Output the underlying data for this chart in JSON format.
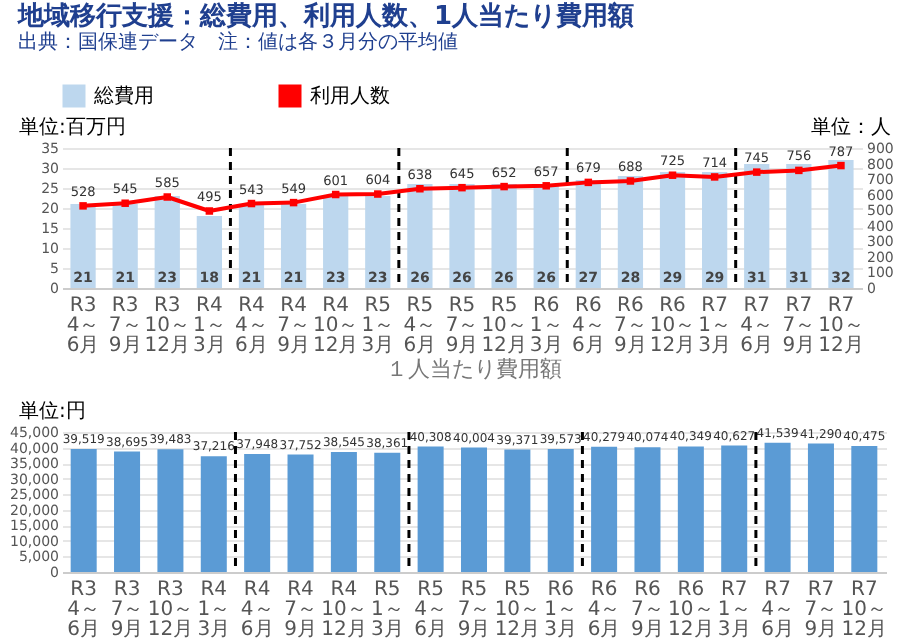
{
  "chart_data": [
    {
      "type": "bar",
      "title": "地域移行支援：総費用、利用人数、1人当たり費用額",
      "ylabel": "単位:百万円",
      "y2label": "単位：人",
      "annotations": [
        "出典：国保連データ",
        "注：値は各３月分の平均値"
      ],
      "categories": [
        "R3 4～6月",
        "R3 7～9月",
        "R3 10～12月",
        "R4 1～3月",
        "R4 4～6月",
        "R4 7～9月",
        "R4 10～12月",
        "R5 1～3月",
        "R5 4～6月",
        "R5 7～9月",
        "R5 10～12月",
        "R6 1～3月",
        "R6 4～6月",
        "R6 7～9月",
        "R6 10～12月",
        "R7 1～3月",
        "R7 4～6月",
        "R7 7～9月",
        "R7 10～12月"
      ],
      "series": [
        {
          "name": "総費用",
          "type": "bar",
          "color": "#bdd7ee",
          "values": [
            21,
            21,
            23,
            18,
            21,
            21,
            23,
            23,
            26,
            26,
            26,
            26,
            27,
            28,
            29,
            29,
            31,
            31,
            32
          ]
        },
        {
          "name": "利用人数",
          "type": "line",
          "axis": "y2",
          "color": "#ff0000",
          "values": [
            528,
            545,
            585,
            495,
            543,
            549,
            601,
            604,
            638,
            645,
            652,
            657,
            679,
            688,
            725,
            714,
            745,
            756,
            787
          ]
        }
      ],
      "data_labels": true,
      "marker": "square",
      "line_style": "solid",
      "ylim": [
        0,
        35
      ],
      "yticks": [
        0,
        5,
        10,
        15,
        20,
        25,
        30,
        35
      ],
      "y2lim": [
        0,
        900
      ],
      "y2ticks": [
        0,
        100,
        200,
        300,
        400,
        500,
        600,
        700,
        800,
        900
      ],
      "grid": "y",
      "legend": "top"
    },
    {
      "type": "bar",
      "title": "１人当たり費用額",
      "ylabel": "単位:円",
      "categories": [
        "R3 4～6月",
        "R3 7～9月",
        "R3 10～12月",
        "R4 1～3月",
        "R4 4～6月",
        "R4 7～9月",
        "R4 10～12月",
        "R5 1～3月",
        "R5 4～6月",
        "R5 7～9月",
        "R5 10～12月",
        "R6 1～3月",
        "R6 4～6月",
        "R6 7～9月",
        "R6 10～12月",
        "R7 1～3月",
        "R7 4～6月",
        "R7 7～9月",
        "R7 10～12月"
      ],
      "values": [
        39519,
        38695,
        39483,
        37216,
        37948,
        37752,
        38545,
        38361,
        40308,
        40004,
        39371,
        39573,
        40279,
        40074,
        40349,
        40627,
        41539,
        41290,
        40475
      ],
      "value_labels": [
        "39,519",
        "38,695",
        "39,483",
        "37,216",
        "37,948",
        "37,752",
        "38,545",
        "38,361",
        "40,308",
        "40,004",
        "39,371",
        "39,573",
        "40,279",
        "40,074",
        "40,349",
        "40,627",
        "41,539",
        "41,290",
        "40,475"
      ],
      "color": "#5b9bd5",
      "ylim": [
        0,
        45000
      ],
      "yticks": [
        0,
        {
          "value": 5000,
          "label": "5,000"
        },
        {
          "value": 10000,
          "label": "10,000"
        },
        {
          "value": 15000,
          "label": "15,000"
        },
        {
          "value": 20000,
          "label": "20,000"
        },
        {
          "value": 25000,
          "label": "25,000"
        },
        {
          "value": 30000,
          "label": "30,000"
        },
        {
          "value": 35000,
          "label": "35,000"
        },
        {
          "value": 40000,
          "label": "40,000"
        },
        {
          "value": 45000,
          "label": "45,000"
        }
      ],
      "grid": "y"
    }
  ]
}
